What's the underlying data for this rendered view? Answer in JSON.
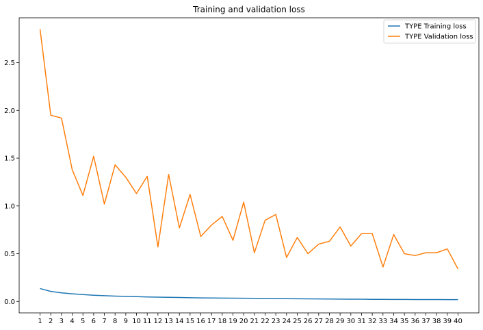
{
  "chart_data": {
    "type": "line",
    "title": "Training and validation loss",
    "xlabel": "",
    "ylabel": "",
    "x": [
      1,
      2,
      3,
      4,
      5,
      6,
      7,
      8,
      9,
      10,
      11,
      12,
      13,
      14,
      15,
      16,
      17,
      18,
      19,
      20,
      21,
      22,
      23,
      24,
      25,
      26,
      27,
      28,
      29,
      30,
      31,
      32,
      33,
      34,
      35,
      36,
      37,
      38,
      39,
      40
    ],
    "xticks": [
      "1",
      "2",
      "3",
      "4",
      "5",
      "6",
      "7",
      "8",
      "9",
      "10",
      "11",
      "12",
      "13",
      "14",
      "15",
      "16",
      "17",
      "18",
      "19",
      "20",
      "21",
      "22",
      "23",
      "24",
      "25",
      "26",
      "27",
      "28",
      "29",
      "30",
      "31",
      "32",
      "33",
      "34",
      "35",
      "36",
      "37",
      "38",
      "39",
      "40"
    ],
    "yticks": [
      "0.0",
      "0.5",
      "1.0",
      "1.5",
      "2.0",
      "2.5"
    ],
    "ytick_values": [
      0.0,
      0.5,
      1.0,
      1.5,
      2.0,
      2.5
    ],
    "xlim": [
      -0.95,
      41.95
    ],
    "ylim": [
      -0.12,
      2.97
    ],
    "grid": false,
    "legend_position": "top-right",
    "series": [
      {
        "name": "TYPE Training loss",
        "color": "#1f77b4",
        "values": [
          0.135,
          0.105,
          0.09,
          0.08,
          0.072,
          0.065,
          0.06,
          0.056,
          0.053,
          0.05,
          0.047,
          0.045,
          0.043,
          0.041,
          0.039,
          0.037,
          0.036,
          0.035,
          0.034,
          0.033,
          0.032,
          0.031,
          0.03,
          0.029,
          0.028,
          0.027,
          0.026,
          0.025,
          0.024,
          0.023,
          0.023,
          0.022,
          0.022,
          0.021,
          0.021,
          0.02,
          0.02,
          0.02,
          0.019,
          0.019
        ]
      },
      {
        "name": "TYPE Validation loss",
        "color": "#ff7f0e",
        "values": [
          2.85,
          1.95,
          1.92,
          1.38,
          1.11,
          1.52,
          1.02,
          1.43,
          1.3,
          1.13,
          1.31,
          0.57,
          1.33,
          0.77,
          1.12,
          0.68,
          0.8,
          0.89,
          0.64,
          1.04,
          0.51,
          0.85,
          0.91,
          0.46,
          0.67,
          0.5,
          0.6,
          0.63,
          0.78,
          0.58,
          0.71,
          0.71,
          0.36,
          0.7,
          0.5,
          0.48,
          0.51,
          0.51,
          0.55,
          0.34
        ]
      }
    ]
  }
}
